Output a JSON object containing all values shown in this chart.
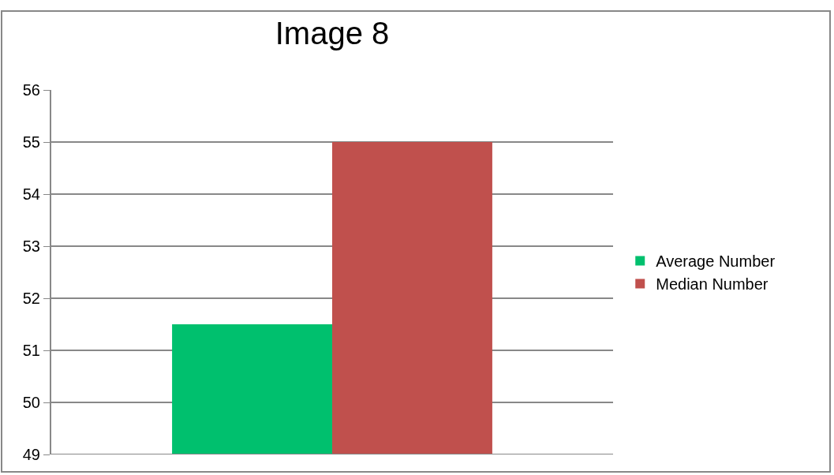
{
  "chart_data": {
    "type": "bar",
    "title": "Image 8",
    "categories": [
      null
    ],
    "series": [
      {
        "name": "Average Number",
        "color": "#00c06e",
        "values": [
          51.5
        ]
      },
      {
        "name": "Median Number",
        "color": "#c0504d",
        "values": [
          55
        ]
      }
    ],
    "ylim": [
      49,
      56
    ],
    "yticks": [
      49,
      50,
      51,
      52,
      53,
      54,
      55,
      56
    ],
    "grid": "y",
    "legend": "right"
  }
}
